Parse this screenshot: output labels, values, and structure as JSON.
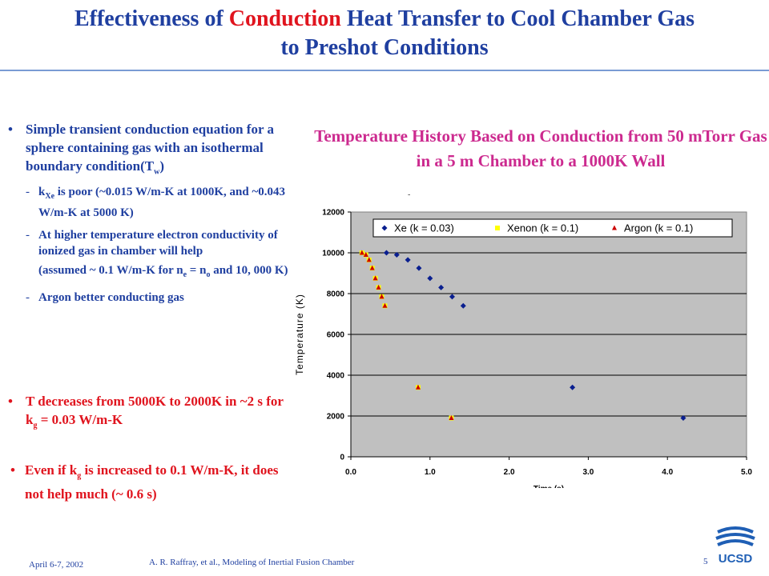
{
  "title": {
    "line1_pre": "Effectiveness of ",
    "line1_highlight": "Conduction",
    "line1_post": " Heat Transfer to Cool Chamber Gas",
    "line2": "to Preshot Conditions"
  },
  "bullets": {
    "b1": {
      "text": "Simple transient conduction equation for a sphere containing gas with an isothermal boundary condition(T",
      "sub": "w",
      "end": ")"
    },
    "s1": {
      "a": "k",
      "sub": "Xe",
      "b": " is poor (~0.015 W/m-K at 1000K, and ~0.043 W/m-K at 5000 K)"
    },
    "s2": {
      "text": "At higher temperature electron conductivity of ionized gas in chamber will help"
    },
    "s2b": {
      "a": "(assumed ~ 0.1 W/m-K for n",
      "sub1": "e",
      "b": " = n",
      "sub2": "o",
      "c": " and 10, 000 K)"
    },
    "s3": {
      "text": "Argon better conducting gas"
    },
    "b2": {
      "a": "T decreases from 5000K to 2000K in ~2 s for k",
      "sub": "g",
      "b": " = 0.03 W/m-K"
    },
    "b3": {
      "a": "Even if k",
      "sub": "g",
      "b": " is increased to 0.1 W/m-K, it does not help much (~ 0.6 s)"
    }
  },
  "chart_title": "Temperature History Based on Conduction from 50 mTorr Gas in a 5 m Chamber to a 1000K Wall",
  "tiny_mark": "-",
  "footer": {
    "date": "April 6-7, 2002",
    "author": "A. R. Raffray, et al., Modeling of Inertial Fusion Chamber",
    "page": "5",
    "logo_text": "UCSD"
  },
  "chart_data": {
    "type": "scatter",
    "xlabel": "Time (s)",
    "ylabel": "Temperature (K)",
    "xlim": [
      0,
      5
    ],
    "ylim": [
      0,
      12000
    ],
    "x_ticks": [
      "0.0",
      "1.0",
      "2.0",
      "3.0",
      "4.0",
      "5.0"
    ],
    "y_ticks": [
      "0",
      "2000",
      "4000",
      "6000",
      "8000",
      "10000",
      "12000"
    ],
    "legend_position": "top",
    "series": [
      {
        "name": "Xe (k = 0.03)",
        "color": "#0a1f8f",
        "marker": "diamond",
        "points": [
          [
            0.45,
            10000
          ],
          [
            0.58,
            9900
          ],
          [
            0.72,
            9650
          ],
          [
            0.86,
            9250
          ],
          [
            1.0,
            8750
          ],
          [
            1.14,
            8300
          ],
          [
            1.28,
            7850
          ],
          [
            1.42,
            7400
          ],
          [
            2.8,
            3400
          ],
          [
            4.2,
            1900
          ]
        ]
      },
      {
        "name": "Xenon (k = 0.1)",
        "color": "#ffff00",
        "marker": "square",
        "points": [
          [
            0.14,
            10000
          ],
          [
            0.19,
            9900
          ],
          [
            0.23,
            9650
          ],
          [
            0.27,
            9250
          ],
          [
            0.31,
            8750
          ],
          [
            0.35,
            8300
          ],
          [
            0.39,
            7850
          ],
          [
            0.43,
            7400
          ],
          [
            0.85,
            3400
          ],
          [
            1.27,
            1900
          ]
        ]
      },
      {
        "name": "Argon (k = 0.1)",
        "color": "#cc0000",
        "marker": "triangle",
        "points": [
          [
            0.14,
            10000
          ],
          [
            0.19,
            9900
          ],
          [
            0.23,
            9650
          ],
          [
            0.27,
            9250
          ],
          [
            0.31,
            8750
          ],
          [
            0.35,
            8300
          ],
          [
            0.39,
            7850
          ],
          [
            0.43,
            7400
          ],
          [
            0.85,
            3400
          ],
          [
            1.27,
            1900
          ]
        ]
      }
    ]
  }
}
